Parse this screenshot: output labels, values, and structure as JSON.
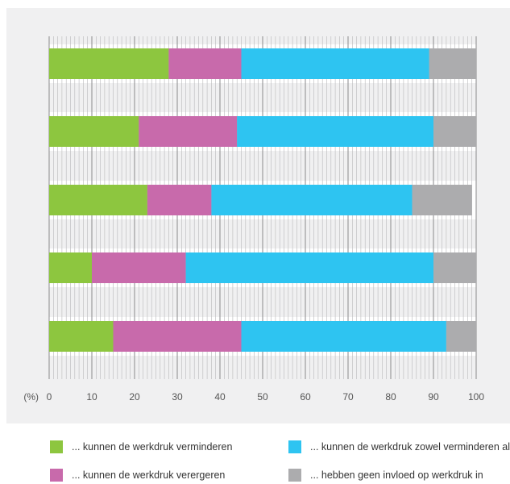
{
  "chart_data": {
    "type": "bar",
    "orientation": "horizontal",
    "stacked": true,
    "unit_label": "(%)",
    "xlim": [
      0,
      100
    ],
    "x_ticks": [
      0,
      10,
      20,
      30,
      40,
      50,
      60,
      70,
      80,
      90,
      100
    ],
    "categories": [
      "",
      "",
      "",
      "",
      ""
    ],
    "series": [
      {
        "name": "... kunnen de werkdruk verminderen",
        "color": "#8dc63f",
        "values": [
          28,
          21,
          23,
          10,
          15
        ]
      },
      {
        "name": "... kunnen de werkdruk verergeren",
        "color": "#c86aab",
        "values": [
          17,
          23,
          15,
          22,
          30
        ]
      },
      {
        "name": "... kunnen de werkdruk zowel verminderen als verergeren",
        "color": "#2ec4f1",
        "values": [
          44,
          46,
          47,
          58,
          48
        ]
      },
      {
        "name": "... hebben geen invloed op werkdruk in",
        "color": "#acacae",
        "values": [
          11,
          10,
          14,
          10,
          7
        ]
      }
    ],
    "grid": true,
    "legend_position": "bottom"
  },
  "legend": {
    "items": [
      {
        "label": "... kunnen de werkdruk verminderen"
      },
      {
        "label": "... kunnen de werkdruk zowel verminderen als verergeren"
      },
      {
        "label": "... kunnen de werkdruk verergeren"
      },
      {
        "label": "... hebben geen invloed op werkdruk in"
      }
    ]
  }
}
